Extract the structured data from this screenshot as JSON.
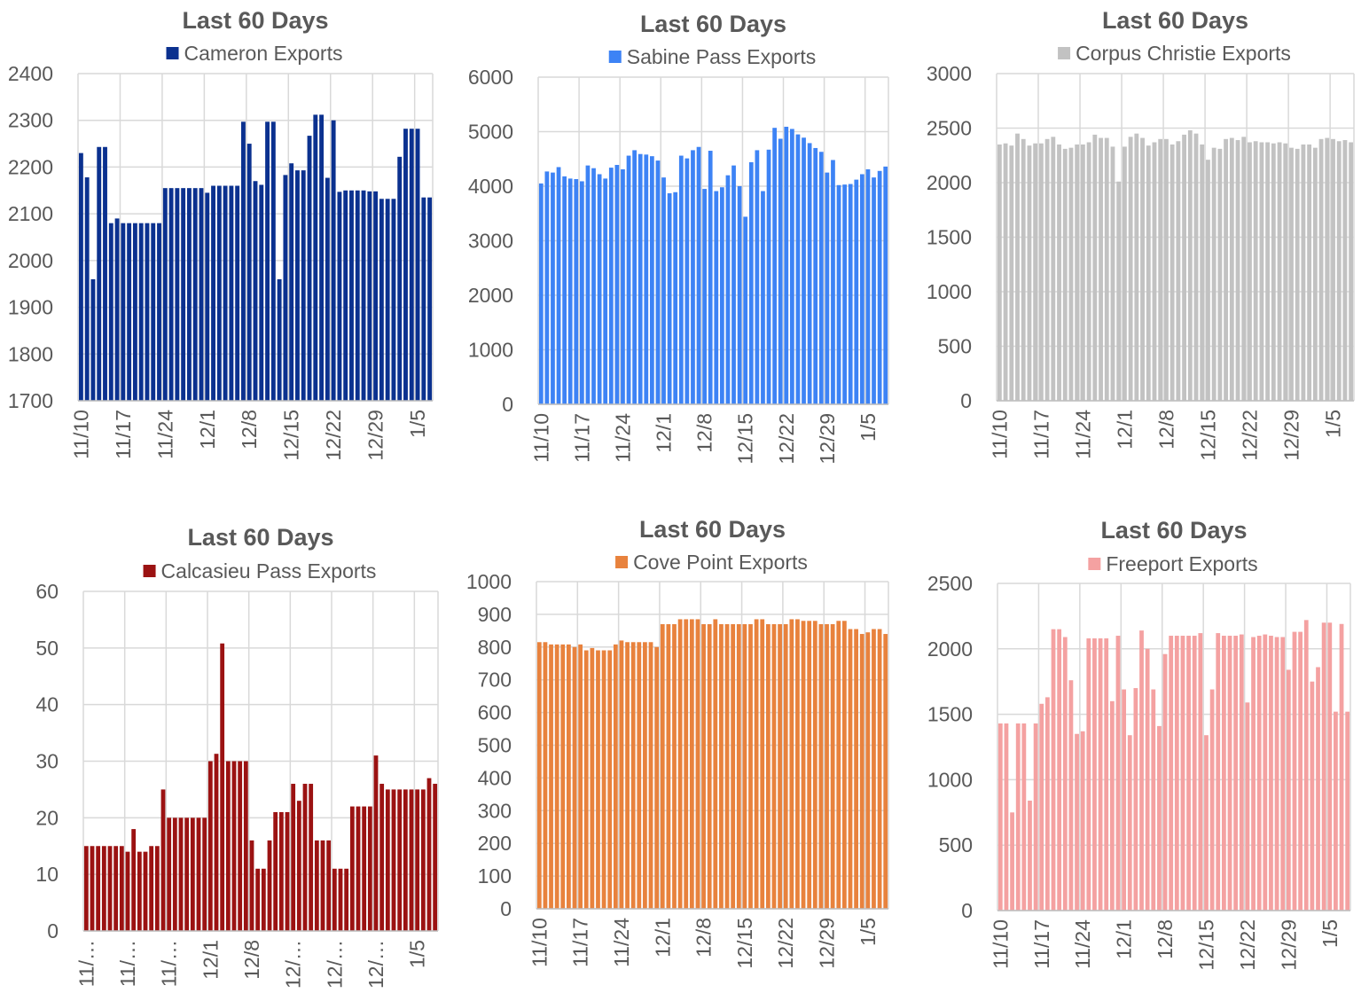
{
  "chart_data": [
    {
      "type": "bar",
      "title": "Last 60 Days",
      "series": [
        {
          "name": "Cameron Exports",
          "color": "#0B318F",
          "values": [
            2230,
            2178,
            1960,
            2243,
            2243,
            2080,
            2090,
            2080,
            2080,
            2080,
            2080,
            2080,
            2080,
            2080,
            2155,
            2155,
            2155,
            2155,
            2155,
            2155,
            2155,
            2145,
            2160,
            2160,
            2160,
            2160,
            2160,
            2297,
            2250,
            2170,
            2162,
            2297,
            2297,
            1960,
            2183,
            2208,
            2193,
            2193,
            2267,
            2312,
            2312,
            2177,
            2300,
            2147,
            2150,
            2150,
            2150,
            2150,
            2148,
            2148,
            2132,
            2132,
            2132,
            2222,
            2282,
            2282,
            2282,
            2135,
            2135
          ]
        }
      ],
      "ylim": [
        1700,
        2400
      ],
      "yticks": [
        1700,
        1800,
        1900,
        2000,
        2100,
        2200,
        2300,
        2400
      ],
      "xtick_labels": [
        "11/10",
        "11/17",
        "11/24",
        "12/1",
        "12/8",
        "12/15",
        "12/22",
        "12/29",
        "1/5"
      ],
      "grid": true,
      "legend": "top"
    },
    {
      "type": "bar",
      "title": "Last 60 Days",
      "series": [
        {
          "name": "Sabine Pass Exports",
          "color": "#3D83F5",
          "values": [
            4050,
            4270,
            4250,
            4350,
            4180,
            4140,
            4130,
            4090,
            4380,
            4330,
            4220,
            4140,
            4340,
            4390,
            4310,
            4560,
            4660,
            4590,
            4580,
            4550,
            4470,
            4160,
            3870,
            3890,
            4560,
            4510,
            4660,
            4720,
            3950,
            4650,
            3910,
            3980,
            4200,
            4380,
            4000,
            3440,
            4440,
            4660,
            3910,
            4670,
            5070,
            4870,
            5090,
            5050,
            4950,
            4890,
            4790,
            4700,
            4630,
            4250,
            4480,
            4020,
            4030,
            4040,
            4120,
            4220,
            4310,
            4160,
            4280,
            4360
          ]
        }
      ],
      "ylim": [
        0,
        6000
      ],
      "yticks": [
        0,
        1000,
        2000,
        3000,
        4000,
        5000,
        6000
      ],
      "xtick_labels": [
        "11/10",
        "11/17",
        "11/24",
        "12/1",
        "12/8",
        "12/15",
        "12/22",
        "12/29",
        "1/5"
      ],
      "grid": true,
      "legend": "top"
    },
    {
      "type": "bar",
      "title": "Last 60 Days",
      "series": [
        {
          "name": "Corpus Christie Exports",
          "color": "#C2C2C2",
          "values": [
            2350,
            2360,
            2340,
            2450,
            2400,
            2340,
            2360,
            2360,
            2400,
            2420,
            2350,
            2310,
            2320,
            2350,
            2350,
            2370,
            2440,
            2410,
            2410,
            2330,
            2010,
            2330,
            2420,
            2450,
            2410,
            2340,
            2370,
            2400,
            2400,
            2350,
            2380,
            2440,
            2480,
            2450,
            2350,
            2210,
            2320,
            2310,
            2400,
            2410,
            2390,
            2420,
            2370,
            2380,
            2370,
            2370,
            2360,
            2370,
            2360,
            2320,
            2310,
            2350,
            2350,
            2320,
            2400,
            2410,
            2400,
            2380,
            2390,
            2370
          ]
        }
      ],
      "ylim": [
        0,
        3000
      ],
      "yticks": [
        0,
        500,
        1000,
        1500,
        2000,
        2500,
        3000
      ],
      "xtick_labels": [
        "11/10",
        "11/17",
        "11/24",
        "12/1",
        "12/8",
        "12/15",
        "12/22",
        "12/29",
        "1/5"
      ],
      "grid": true,
      "legend": "top"
    },
    {
      "type": "bar",
      "title": "Last 60 Days",
      "series": [
        {
          "name": "Calcasieu Pass Exports",
          "color": "#9B1212",
          "values": [
            15,
            15,
            15,
            15,
            15,
            15,
            15,
            14,
            18,
            14,
            14,
            15,
            15,
            25,
            20,
            20,
            20,
            20,
            20,
            20,
            20,
            30,
            31.3,
            50.8,
            30,
            30,
            30,
            30,
            16,
            11,
            11,
            16,
            21,
            21,
            21,
            26,
            23,
            26,
            26,
            16,
            16,
            16,
            11,
            11,
            11,
            22,
            22,
            22,
            22,
            31,
            26,
            25,
            25,
            25,
            25,
            25,
            25,
            25,
            27,
            26
          ]
        }
      ],
      "ylim": [
        0,
        60
      ],
      "yticks": [
        0,
        10,
        20,
        30,
        40,
        50,
        60
      ],
      "xtick_labels": [
        "11/…",
        "11/…",
        "11/…",
        "12/1",
        "12/8",
        "12/…",
        "12/…",
        "12/…",
        "1/5"
      ],
      "grid": true,
      "legend": "top"
    },
    {
      "type": "bar",
      "title": "Last 60 Days",
      "series": [
        {
          "name": "Cove Point Exports",
          "color": "#E8823D",
          "values": [
            815,
            815,
            808,
            808,
            808,
            808,
            800,
            808,
            790,
            797,
            790,
            790,
            790,
            808,
            820,
            815,
            815,
            815,
            815,
            815,
            800,
            870,
            870,
            870,
            885,
            885,
            885,
            885,
            870,
            870,
            885,
            870,
            870,
            870,
            870,
            870,
            870,
            885,
            885,
            870,
            870,
            870,
            870,
            885,
            885,
            880,
            880,
            880,
            870,
            870,
            870,
            880,
            880,
            855,
            855,
            840,
            845,
            855,
            855,
            840
          ]
        }
      ],
      "ylim": [
        0,
        1000
      ],
      "yticks": [
        0,
        100,
        200,
        300,
        400,
        500,
        600,
        700,
        800,
        900,
        1000
      ],
      "xtick_labels": [
        "11/10",
        "11/17",
        "11/24",
        "12/1",
        "12/8",
        "12/15",
        "12/22",
        "12/29",
        "1/5"
      ],
      "grid": true,
      "legend": "top"
    },
    {
      "type": "bar",
      "title": "Last 60 Days",
      "series": [
        {
          "name": "Freeport Exports",
          "color": "#F4A1A1",
          "values": [
            1430,
            1430,
            750,
            1430,
            1430,
            840,
            1430,
            1580,
            1630,
            2150,
            2150,
            2090,
            1760,
            1350,
            1370,
            2080,
            2080,
            2080,
            2080,
            1600,
            2100,
            1690,
            1340,
            1700,
            2140,
            2000,
            1690,
            1410,
            1960,
            2100,
            2100,
            2100,
            2100,
            2100,
            2120,
            1340,
            1690,
            2120,
            2100,
            2100,
            2100,
            2110,
            1590,
            2090,
            2100,
            2110,
            2100,
            2090,
            2090,
            1840,
            2130,
            2130,
            2220,
            1750,
            1860,
            2200,
            2200,
            1520,
            2190,
            1520
          ]
        }
      ],
      "ylim": [
        0,
        2500
      ],
      "yticks": [
        0,
        500,
        1000,
        1500,
        2000,
        2500
      ],
      "xtick_labels": [
        "11/10",
        "11/17",
        "11/24",
        "12/1",
        "12/8",
        "12/15",
        "12/22",
        "12/29",
        "1/5"
      ],
      "grid": true,
      "legend": "top"
    }
  ]
}
